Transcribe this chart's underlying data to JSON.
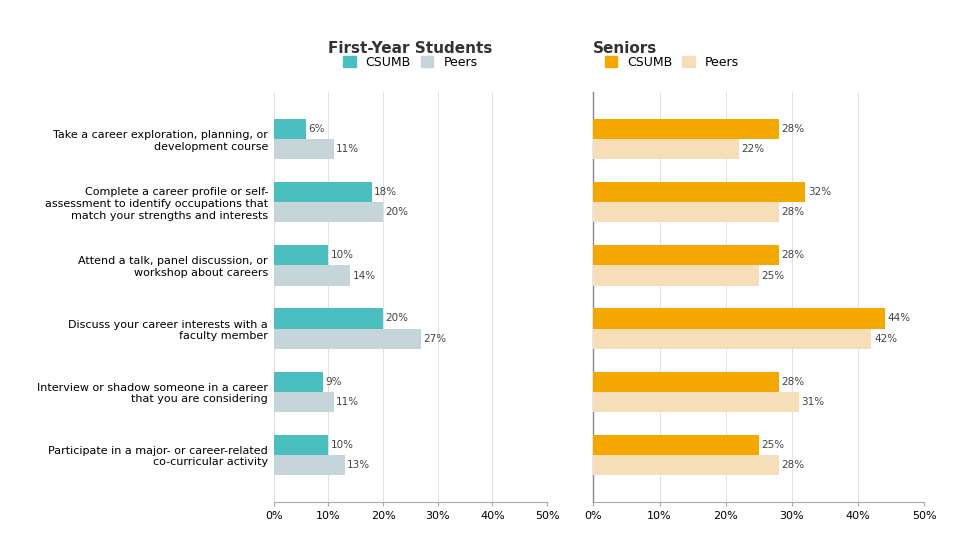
{
  "categories": [
    "Take a career exploration, planning, or\ndevelopment course",
    "Complete a career profile or self-\nassessment to identify occupations that\nmatch your strengths and interests",
    "Attend a talk, panel discussion, or\nworkshop about careers",
    "Discuss your career interests with a\nfaculty member",
    "Interview or shadow someone in a career\nthat you are considering",
    "Participate in a major- or career-related\nco-curricular activity"
  ],
  "fy_csumb": [
    6,
    18,
    10,
    20,
    9,
    10
  ],
  "fy_peers": [
    11,
    20,
    14,
    27,
    11,
    13
  ],
  "sr_csumb": [
    28,
    32,
    28,
    44,
    28,
    25
  ],
  "sr_peers": [
    22,
    28,
    25,
    42,
    31,
    28
  ],
  "fy_csumb_color": "#4BBFBF",
  "fy_peers_color": "#C5D5DA",
  "sr_csumb_color": "#F5A800",
  "sr_peers_color": "#F5DEB8",
  "background_color": "#FFFFFF",
  "title_fy": "First-Year Students",
  "title_sr": "Seniors",
  "xticks": [
    0,
    10,
    20,
    30,
    40,
    50
  ],
  "bar_height": 0.32,
  "divider_color": "#888888",
  "label_fontsize": 7.5,
  "axis_fontsize": 8,
  "title_fontsize": 11,
  "legend_fontsize": 9
}
